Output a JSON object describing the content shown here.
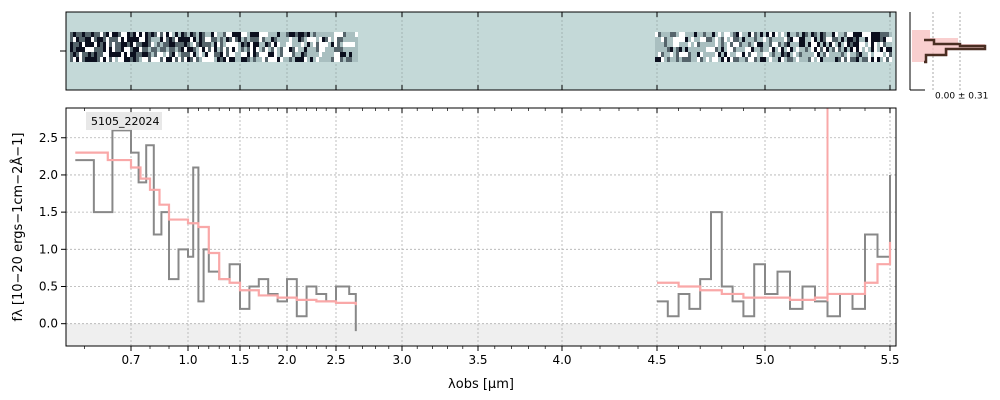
{
  "chart_data": {
    "type": "line",
    "id_label": "5105_22024",
    "xlabel": "λobs [μm]",
    "ylabel": "fλ [10−20 ergs−1cm−2Å−1]",
    "x_scale": "reciprocal-like",
    "xlim": [
      0.56,
      5.52
    ],
    "ylim": [
      -0.3,
      2.9
    ],
    "x_ticks": [
      {
        "v": 0.7,
        "label": "0.7"
      },
      {
        "v": 1.0,
        "label": "1.0"
      },
      {
        "v": 1.5,
        "label": "1.5"
      },
      {
        "v": 2.0,
        "label": "2.0"
      },
      {
        "v": 2.5,
        "label": "2.5"
      },
      {
        "v": 3.0,
        "label": "3.0"
      },
      {
        "v": 3.5,
        "label": "3.5"
      },
      {
        "v": 4.0,
        "label": "4.0"
      },
      {
        "v": 4.5,
        "label": "4.5"
      },
      {
        "v": 5.0,
        "label": "5.0"
      },
      {
        "v": 5.5,
        "label": "5.5"
      }
    ],
    "y_ticks": [
      {
        "v": 0.0,
        "label": "0.0"
      },
      {
        "v": 0.5,
        "label": "0.5"
      },
      {
        "v": 1.0,
        "label": "1.0"
      },
      {
        "v": 1.5,
        "label": "1.5"
      },
      {
        "v": 2.0,
        "label": "2.0"
      },
      {
        "v": 2.5,
        "label": "2.5"
      }
    ],
    "grid": true,
    "series": [
      {
        "role": "flux",
        "color": "#888888",
        "segments": [
          {
            "x": [
              0.58,
              0.62,
              0.66,
              0.7,
              0.74,
              0.78,
              0.82,
              0.86,
              0.9,
              0.95,
              1.0,
              1.05,
              1.1,
              1.15,
              1.2,
              1.3,
              1.4,
              1.5,
              1.6,
              1.7,
              1.8,
              1.9,
              2.0,
              2.1,
              2.2,
              2.3,
              2.4,
              2.5,
              2.6,
              2.65
            ],
            "y": [
              2.2,
              1.5,
              2.6,
              2.3,
              1.9,
              2.4,
              1.2,
              1.5,
              0.6,
              1.0,
              0.9,
              2.1,
              0.3,
              1.0,
              0.7,
              0.6,
              0.8,
              0.2,
              0.5,
              0.6,
              0.4,
              0.3,
              0.6,
              0.1,
              0.5,
              0.4,
              0.3,
              0.5,
              0.4,
              -0.1
            ]
          },
          {
            "x": [
              4.5,
              4.55,
              4.6,
              4.65,
              4.7,
              4.75,
              4.8,
              4.85,
              4.9,
              4.95,
              5.0,
              5.05,
              5.1,
              5.15,
              5.2,
              5.25,
              5.3,
              5.35,
              5.4,
              5.45,
              5.5
            ],
            "y": [
              0.3,
              0.1,
              0.4,
              0.2,
              0.6,
              1.5,
              0.5,
              0.3,
              0.1,
              0.8,
              0.4,
              0.7,
              0.2,
              0.5,
              0.3,
              0.1,
              0.4,
              0.2,
              1.2,
              0.9,
              2.0
            ]
          }
        ]
      },
      {
        "role": "model",
        "color": "#f9a8a8",
        "segments": [
          {
            "x": [
              0.58,
              0.65,
              0.7,
              0.75,
              0.8,
              0.85,
              0.9,
              1.0,
              1.1,
              1.2,
              1.3,
              1.4,
              1.5,
              1.7,
              1.9,
              2.1,
              2.3,
              2.5,
              2.65
            ],
            "y": [
              2.3,
              2.2,
              2.1,
              1.95,
              1.8,
              1.6,
              1.4,
              1.35,
              1.3,
              0.95,
              0.6,
              0.55,
              0.45,
              0.38,
              0.35,
              0.32,
              0.3,
              0.28,
              0.25
            ]
          },
          {
            "x": [
              4.5,
              4.6,
              4.7,
              4.8,
              4.9,
              5.0,
              5.1,
              5.2,
              5.25,
              5.3,
              5.4,
              5.45,
              5.5
            ],
            "y": [
              0.55,
              0.5,
              0.45,
              0.4,
              0.35,
              0.35,
              0.32,
              0.35,
              0.4,
              0.4,
              0.55,
              0.8,
              1.1
            ]
          }
        ]
      }
    ],
    "spike": {
      "x": 5.25,
      "y_top": 2.9,
      "color": "#f9a8a8"
    },
    "histogram_label": "0.00 ± 0.31",
    "colors": {
      "flux": "#888888",
      "model": "#f9a8a8",
      "image_bg": "#c4d9d8",
      "zero_band": "#efefef"
    }
  }
}
